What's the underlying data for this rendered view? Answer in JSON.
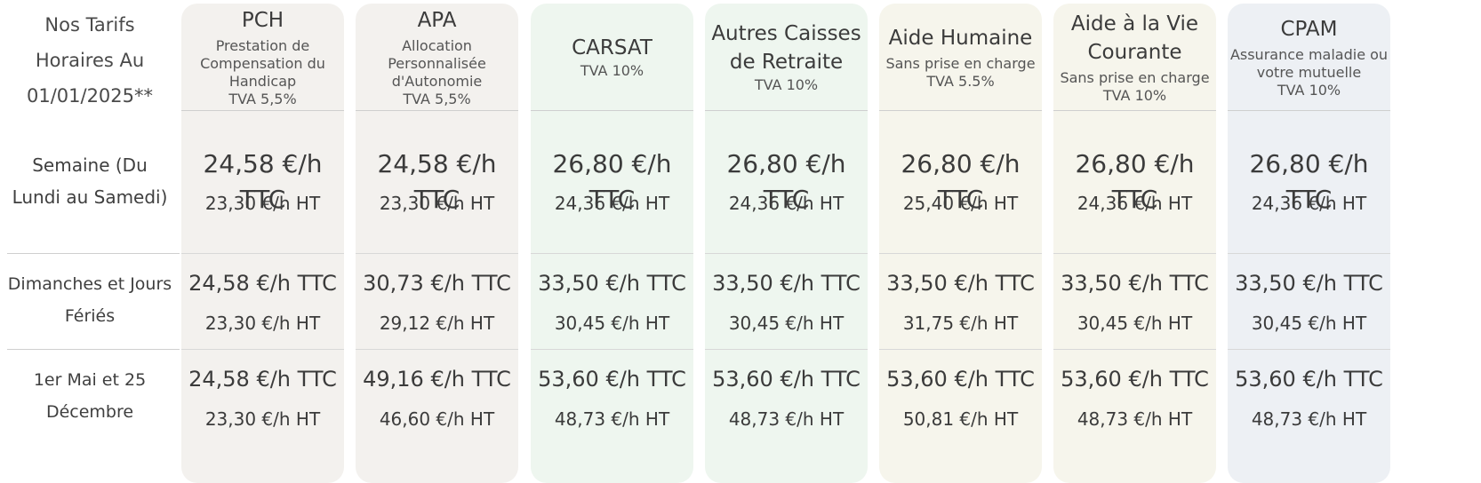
{
  "corner_label": [
    "Nos Tarifs",
    "Horaires Au",
    "01/01/2025**"
  ],
  "row_labels": [
    [
      "Semaine (Du",
      "Lundi au Samedi)"
    ],
    [
      "Dimanches et Jours",
      "Fériés"
    ],
    [
      "1er Mai et 25",
      "Décembre"
    ]
  ],
  "colors": {
    "neutral_bg": "#f3f1ee",
    "green_bg": "#eef6ef",
    "cream_bg": "#f6f5ec",
    "blue_bg": "#edf0f4",
    "divider": "#cfcfcf"
  },
  "columns": [
    {
      "title": [
        "PCH"
      ],
      "subtitle": [
        "Prestation de",
        "Compensation du",
        "Handicap"
      ],
      "tva": "TVA 5,5%",
      "rows": [
        {
          "ttc": "24,58 €/h TTC",
          "ht": "23,30 €/h HT"
        },
        {
          "ttc": "24,58 €/h TTC",
          "ht": "23,30 €/h HT"
        },
        {
          "ttc": "24,58 €/h TTC",
          "ht": "23,30 €/h HT"
        }
      ]
    },
    {
      "title": [
        "APA"
      ],
      "subtitle": [
        "Allocation",
        "Personnalisée",
        "d'Autonomie"
      ],
      "tva": "TVA 5,5%",
      "rows": [
        {
          "ttc": "24,58 €/h TTC",
          "ht": "23,30 €/h HT"
        },
        {
          "ttc": "30,73 €/h TTC",
          "ht": "29,12 €/h HT"
        },
        {
          "ttc": "49,16 €/h TTC",
          "ht": "46,60 €/h HT"
        }
      ]
    },
    {
      "title": [
        "CARSAT"
      ],
      "subtitle": [],
      "tva": "TVA 10%",
      "rows": [
        {
          "ttc": "26,80 €/h TTC",
          "ht": "24,36 €/h HT"
        },
        {
          "ttc": "33,50 €/h TTC",
          "ht": "30,45 €/h HT"
        },
        {
          "ttc": "53,60 €/h TTC",
          "ht": "48,73 €/h HT"
        }
      ]
    },
    {
      "title": [
        "Autres Caisses",
        "de Retraite"
      ],
      "subtitle": [],
      "tva": "TVA 10%",
      "rows": [
        {
          "ttc": "26,80 €/h TTC",
          "ht": "24,36 €/h HT"
        },
        {
          "ttc": "33,50 €/h TTC",
          "ht": "30,45 €/h HT"
        },
        {
          "ttc": "53,60 €/h TTC",
          "ht": "48,73 €/h HT"
        }
      ]
    },
    {
      "title": [
        "Aide Humaine"
      ],
      "subtitle": [
        "Sans prise en charge"
      ],
      "tva": "TVA 5.5%",
      "rows": [
        {
          "ttc": "26,80 €/h TTC",
          "ht": "25,40 €/h HT"
        },
        {
          "ttc": "33,50 €/h TTC",
          "ht": "31,75 €/h HT"
        },
        {
          "ttc": "53,60 €/h TTC",
          "ht": "50,81 €/h HT"
        }
      ]
    },
    {
      "title": [
        "Aide à la Vie",
        "Courante"
      ],
      "subtitle": [
        "Sans prise en charge"
      ],
      "tva": "TVA 10%",
      "rows": [
        {
          "ttc": "26,80 €/h TTC",
          "ht": "24,36 €/h HT"
        },
        {
          "ttc": "33,50 €/h TTC",
          "ht": "30,45 €/h HT"
        },
        {
          "ttc": "53,60 €/h TTC",
          "ht": "48,73 €/h HT"
        }
      ]
    },
    {
      "title": [
        "CPAM"
      ],
      "subtitle": [
        "Assurance maladie ou",
        "votre mutuelle"
      ],
      "tva": "TVA 10%",
      "rows": [
        {
          "ttc": "26,80 €/h TTC",
          "ht": "24,36 €/h HT"
        },
        {
          "ttc": "33,50 €/h TTC",
          "ht": "30,45 €/h HT"
        },
        {
          "ttc": "53,60 €/h TTC",
          "ht": "48,73 €/h HT"
        }
      ]
    }
  ]
}
